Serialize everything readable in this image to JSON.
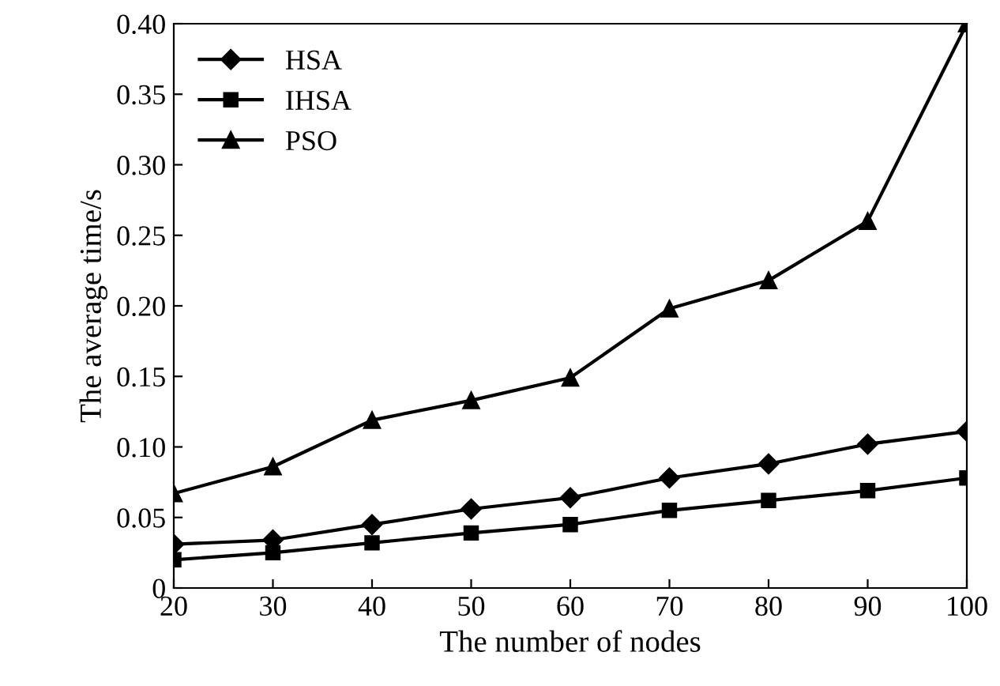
{
  "chart_data": {
    "type": "line",
    "xlabel": "The number of nodes",
    "ylabel": "The average time/s",
    "x": [
      20,
      30,
      40,
      50,
      60,
      70,
      80,
      90,
      100
    ],
    "series": [
      {
        "name": "HSA",
        "color": "#000000",
        "marker": "diamond",
        "values": [
          0.031,
          0.034,
          0.045,
          0.056,
          0.064,
          0.078,
          0.088,
          0.102,
          0.111
        ]
      },
      {
        "name": "IHSA",
        "color": "#000000",
        "marker": "square",
        "values": [
          0.02,
          0.025,
          0.032,
          0.039,
          0.045,
          0.055,
          0.062,
          0.069,
          0.078
        ]
      },
      {
        "name": "PSO",
        "color": "#000000",
        "marker": "triangle",
        "values": [
          0.067,
          0.086,
          0.119,
          0.133,
          0.149,
          0.198,
          0.218,
          0.26,
          0.4
        ]
      }
    ],
    "xlim": [
      20,
      100
    ],
    "xticks": [
      20,
      30,
      40,
      50,
      60,
      70,
      80,
      90,
      100
    ],
    "ylim": [
      0,
      0.4
    ],
    "yticks": [
      0,
      0.05,
      {
        "value": 0.1,
        "label": "0.10"
      },
      0.15,
      {
        "value": 0.2,
        "label": "0.20"
      },
      0.25,
      {
        "value": 0.3,
        "label": "0.30"
      },
      0.35,
      {
        "value": 0.4,
        "label": "0.40"
      }
    ],
    "grid": false,
    "legend": "top left",
    "line_style": "solid"
  }
}
